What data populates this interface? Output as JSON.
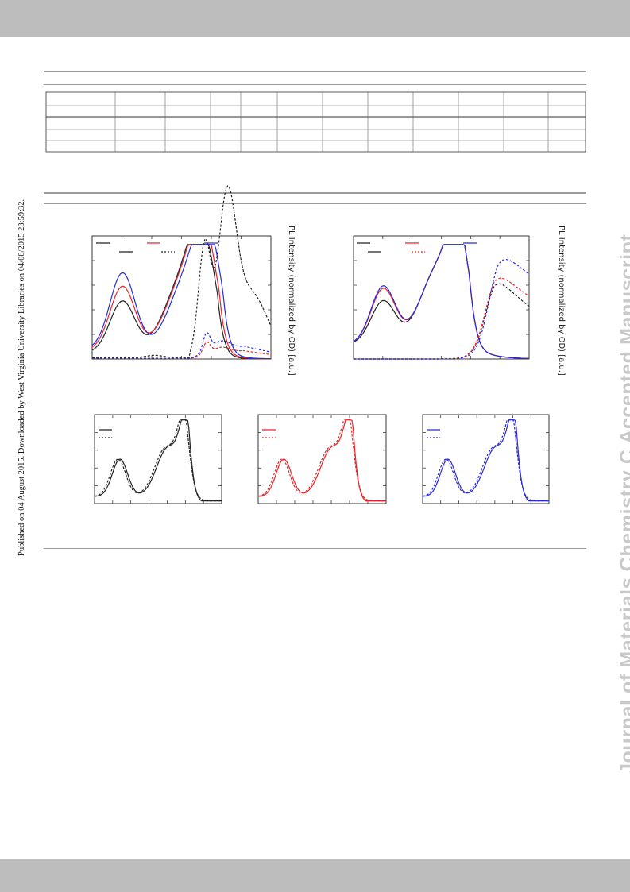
{
  "side_note": "Published on 04 August 2015. Downloaded by West Virginia University Libraries on 04/08/2015 23:59:32.",
  "watermark": "Journal of Materials Chemistry C Accepted Manuscript",
  "table": {
    "rows": 5,
    "cols": 13
  },
  "colors": {
    "black": "#222222",
    "red": "#e8242a",
    "blue": "#2a2ad6",
    "band": "#bdbdbd",
    "rule": "#9a9a9a",
    "watermark": "#c9c9c9"
  },
  "figure": {
    "pl_axis_label": "PL Intensity (normalized by OD) [a.u.]"
  }
}
